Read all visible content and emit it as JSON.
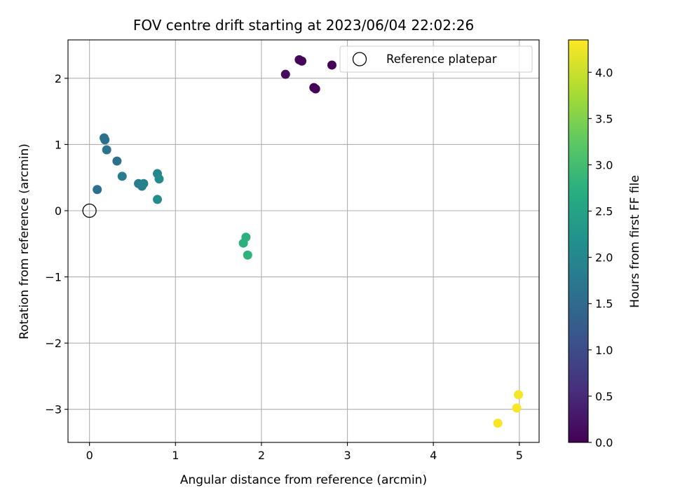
{
  "chart_data": {
    "type": "scatter",
    "title": "FOV centre drift starting at 2023/06/04 22:02:26",
    "xlabel": "Angular distance from reference (arcmin)",
    "ylabel": "Rotation from reference (arcmin)",
    "xlim": [
      -0.25,
      5.23
    ],
    "ylim": [
      -3.5,
      2.58
    ],
    "xticks": [
      0,
      1,
      2,
      3,
      4,
      5
    ],
    "yticks": [
      -3,
      -2,
      -1,
      0,
      1,
      2
    ],
    "xtick_labels": [
      "0",
      "1",
      "2",
      "3",
      "4",
      "5"
    ],
    "ytick_labels": [
      "−3",
      "−2",
      "−1",
      "0",
      "1",
      "2"
    ],
    "grid": true,
    "legend": {
      "position": "top-right",
      "entries": [
        "Reference platepar"
      ]
    },
    "reference_point": {
      "x": 0,
      "y": 0,
      "label": "Reference platepar"
    },
    "colorbar": {
      "label": "Hours from first FF file",
      "colormap": "viridis",
      "range": [
        0.0,
        4.35
      ],
      "ticks": [
        0.0,
        0.5,
        1.0,
        1.5,
        2.0,
        2.5,
        3.0,
        3.5,
        4.0
      ],
      "tick_labels": [
        "0.0",
        "0.5",
        "1.0",
        "1.5",
        "2.0",
        "2.5",
        "3.0",
        "3.5",
        "4.0"
      ]
    },
    "points": [
      {
        "x": 2.28,
        "y": 2.06,
        "hours": 0.12
      },
      {
        "x": 2.44,
        "y": 2.28,
        "hours": 0.05
      },
      {
        "x": 2.47,
        "y": 2.26,
        "hours": 0.05
      },
      {
        "x": 2.82,
        "y": 2.2,
        "hours": 0.02
      },
      {
        "x": 2.61,
        "y": 1.86,
        "hours": 0.03
      },
      {
        "x": 2.63,
        "y": 1.84,
        "hours": 0.03
      },
      {
        "x": 0.17,
        "y": 1.1,
        "hours": 1.6
      },
      {
        "x": 0.18,
        "y": 1.07,
        "hours": 1.6
      },
      {
        "x": 0.2,
        "y": 0.92,
        "hours": 1.7
      },
      {
        "x": 0.32,
        "y": 0.75,
        "hours": 1.6
      },
      {
        "x": 0.38,
        "y": 0.52,
        "hours": 1.8
      },
      {
        "x": 0.09,
        "y": 0.32,
        "hours": 1.6
      },
      {
        "x": 0.57,
        "y": 0.41,
        "hours": 1.85
      },
      {
        "x": 0.61,
        "y": 0.37,
        "hours": 1.85
      },
      {
        "x": 0.63,
        "y": 0.41,
        "hours": 1.9
      },
      {
        "x": 0.79,
        "y": 0.56,
        "hours": 2.0
      },
      {
        "x": 0.81,
        "y": 0.48,
        "hours": 2.05
      },
      {
        "x": 0.79,
        "y": 0.17,
        "hours": 2.1
      },
      {
        "x": 1.82,
        "y": -0.4,
        "hours": 2.75
      },
      {
        "x": 1.79,
        "y": -0.49,
        "hours": 2.75
      },
      {
        "x": 1.84,
        "y": -0.67,
        "hours": 2.8
      },
      {
        "x": 4.99,
        "y": -2.78,
        "hours": 4.3
      },
      {
        "x": 4.97,
        "y": -2.98,
        "hours": 4.3
      },
      {
        "x": 4.75,
        "y": -3.21,
        "hours": 4.3
      }
    ]
  }
}
